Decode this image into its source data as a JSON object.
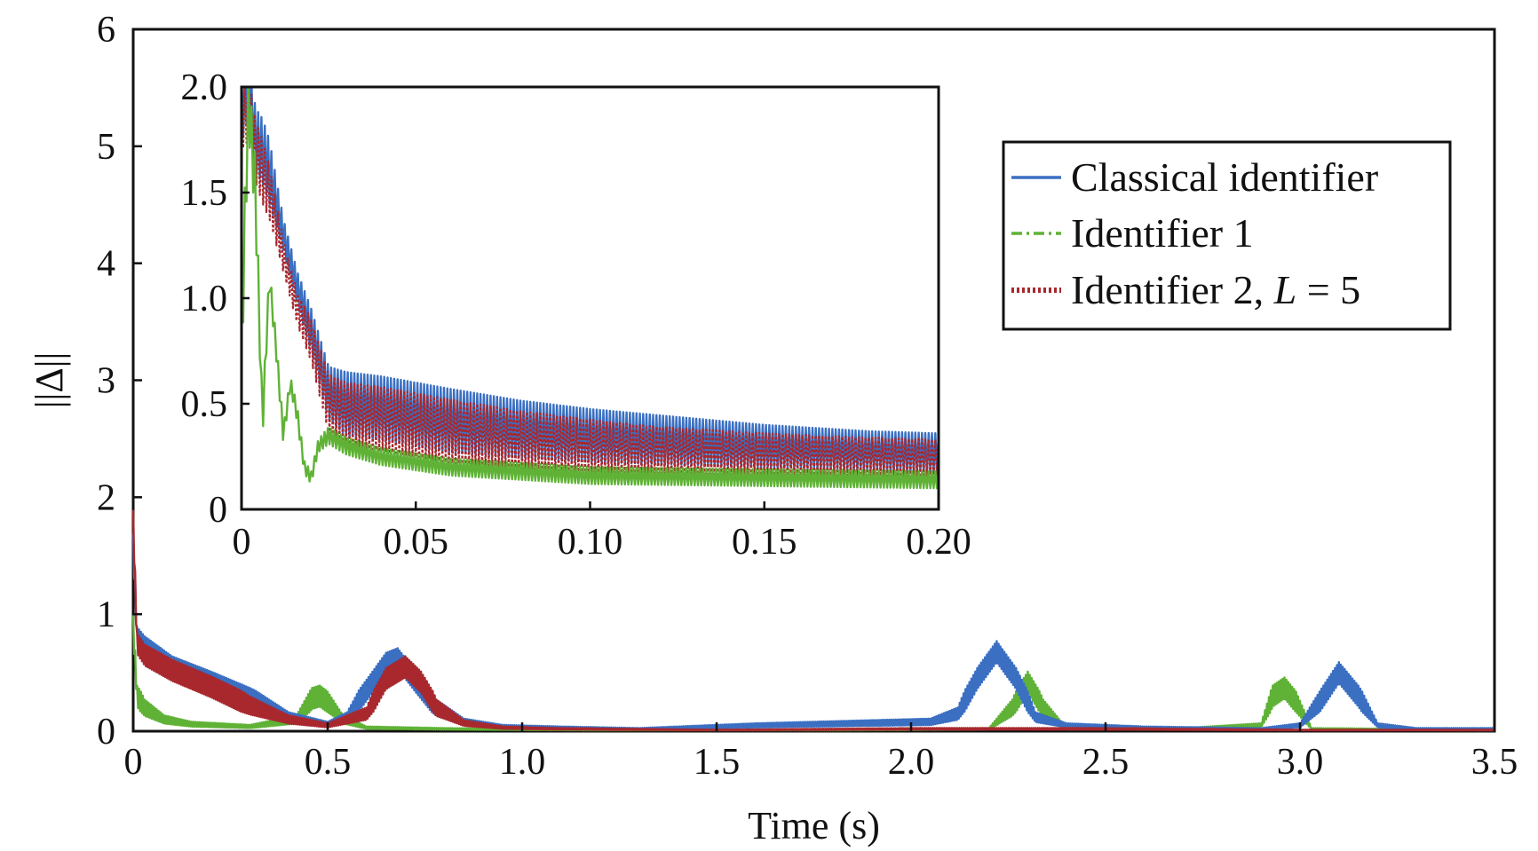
{
  "chart_data": [
    {
      "type": "line",
      "title": "",
      "xlabel": "Time (s)",
      "ylabel": "||Δ||",
      "xlim": [
        0,
        3.5
      ],
      "ylim": [
        0,
        6
      ],
      "xticks": [
        "0",
        "0.5",
        "1.0",
        "1.5",
        "2.0",
        "2.5",
        "3.0",
        "3.5"
      ],
      "yticks": [
        "0",
        "1",
        "2",
        "3",
        "4",
        "5",
        "6"
      ],
      "grid": false,
      "legend_position": "top-right",
      "legend": [
        {
          "label": "Classical identifier",
          "color": "#3a6fc2",
          "style": "solid"
        },
        {
          "label": "Identifier 1",
          "color": "#5fb236",
          "style": "dash-dot"
        },
        {
          "label_prefix": "Identifier 2, ",
          "label_var": "L",
          "label_suffix": " = 5",
          "color": "#a8282e",
          "style": "dotted"
        }
      ],
      "series": [
        {
          "name": "Classical identifier",
          "color": "#3a6fc2",
          "x": [
            0,
            0.01,
            0.03,
            0.1,
            0.2,
            0.3,
            0.4,
            0.5,
            0.55,
            0.6,
            0.65,
            0.68,
            0.72,
            0.78,
            0.85,
            0.95,
            1.1,
            1.3,
            1.6,
            1.9,
            2.05,
            2.12,
            2.17,
            2.22,
            2.27,
            2.32,
            2.4,
            2.6,
            2.9,
            3.0,
            3.05,
            3.1,
            3.15,
            3.2,
            3.3,
            3.5
          ],
          "y": [
            1.6,
            0.8,
            0.72,
            0.55,
            0.42,
            0.28,
            0.12,
            0.06,
            0.12,
            0.35,
            0.58,
            0.62,
            0.45,
            0.2,
            0.08,
            0.04,
            0.03,
            0.02,
            0.05,
            0.07,
            0.08,
            0.15,
            0.45,
            0.68,
            0.45,
            0.12,
            0.05,
            0.03,
            0.02,
            0.05,
            0.25,
            0.5,
            0.3,
            0.05,
            0.02,
            0.02
          ]
        },
        {
          "name": "Identifier 1",
          "color": "#5fb236",
          "x": [
            0,
            0.01,
            0.03,
            0.08,
            0.15,
            0.3,
            0.42,
            0.46,
            0.48,
            0.5,
            0.54,
            0.6,
            0.8,
            1.2,
            1.8,
            2.2,
            2.26,
            2.3,
            2.34,
            2.4,
            2.7,
            2.9,
            2.93,
            2.96,
            2.99,
            3.03,
            3.5
          ],
          "y": [
            0.9,
            0.3,
            0.2,
            0.1,
            0.06,
            0.04,
            0.1,
            0.28,
            0.3,
            0.25,
            0.1,
            0.03,
            0.02,
            0.01,
            0.01,
            0.02,
            0.2,
            0.42,
            0.2,
            0.02,
            0.02,
            0.05,
            0.3,
            0.37,
            0.25,
            0.02,
            0.01
          ]
        },
        {
          "name": "Identifier 2, L = 5",
          "color": "#a8282e",
          "x": [
            0,
            0.01,
            0.03,
            0.1,
            0.2,
            0.3,
            0.4,
            0.5,
            0.6,
            0.65,
            0.7,
            0.74,
            0.78,
            0.85,
            0.95,
            1.1,
            1.5,
            2.0,
            2.5,
            3.0,
            3.5
          ],
          "y": [
            1.8,
            0.75,
            0.65,
            0.52,
            0.38,
            0.22,
            0.1,
            0.05,
            0.15,
            0.45,
            0.55,
            0.42,
            0.2,
            0.07,
            0.03,
            0.02,
            0.01,
            0.02,
            0.02,
            0.01,
            0.01
          ]
        }
      ]
    },
    {
      "type": "line",
      "title": "",
      "xlabel": "",
      "ylabel": "",
      "xlim": [
        0,
        0.2
      ],
      "ylim": [
        0,
        2.0
      ],
      "xticks": [
        "0",
        "0.05",
        "0.10",
        "0.15",
        "0.20"
      ],
      "yticks": [
        "0",
        "0.5",
        "1.0",
        "1.5",
        "2.0"
      ],
      "grid": false,
      "series": [
        {
          "name": "Classical identifier",
          "color": "#3a6fc2",
          "x": [
            0,
            0.002,
            0.004,
            0.006,
            0.008,
            0.012,
            0.016,
            0.02,
            0.025,
            0.03,
            0.04,
            0.06,
            0.08,
            0.1,
            0.12,
            0.15,
            0.18,
            0.2
          ],
          "y": [
            1.9,
            2.0,
            1.75,
            1.7,
            1.6,
            1.3,
            1.05,
            0.85,
            0.55,
            0.5,
            0.48,
            0.42,
            0.38,
            0.35,
            0.33,
            0.3,
            0.28,
            0.27
          ],
          "amp": [
            0.3,
            0.3,
            0.3,
            0.3,
            0.3,
            0.15,
            0.15,
            0.2,
            0.25,
            0.3,
            0.3,
            0.3,
            0.27,
            0.25,
            0.23,
            0.2,
            0.18,
            0.18
          ]
        },
        {
          "name": "Identifier 1",
          "color": "#5fb236",
          "x": [
            0,
            0.002,
            0.004,
            0.006,
            0.008,
            0.01,
            0.012,
            0.014,
            0.016,
            0.018,
            0.02,
            0.022,
            0.025,
            0.03,
            0.04,
            0.06,
            0.08,
            0.1,
            0.15,
            0.2
          ],
          "y": [
            0.8,
            1.95,
            1.5,
            0.4,
            1.1,
            0.75,
            0.35,
            0.6,
            0.45,
            0.2,
            0.15,
            0.3,
            0.35,
            0.3,
            0.25,
            0.2,
            0.18,
            0.16,
            0.15,
            0.14
          ],
          "amp": [
            0.4,
            0.3,
            0.3,
            0.15,
            0.1,
            0.1,
            0.08,
            0.06,
            0.08,
            0.06,
            0.06,
            0.06,
            0.08,
            0.08,
            0.08,
            0.08,
            0.08,
            0.08,
            0.08,
            0.08
          ]
        },
        {
          "name": "Identifier 2, L = 5",
          "color": "#a8282e",
          "x": [
            0,
            0.002,
            0.004,
            0.006,
            0.008,
            0.012,
            0.016,
            0.02,
            0.025,
            0.03,
            0.04,
            0.06,
            0.08,
            0.1,
            0.12,
            0.15,
            0.18,
            0.2
          ],
          "y": [
            1.85,
            1.9,
            1.7,
            1.6,
            1.5,
            1.2,
            0.95,
            0.8,
            0.5,
            0.45,
            0.43,
            0.37,
            0.33,
            0.3,
            0.28,
            0.26,
            0.25,
            0.24
          ],
          "amp": [
            0.3,
            0.3,
            0.3,
            0.3,
            0.25,
            0.15,
            0.15,
            0.2,
            0.28,
            0.3,
            0.3,
            0.3,
            0.27,
            0.25,
            0.22,
            0.2,
            0.18,
            0.18
          ]
        }
      ]
    }
  ]
}
